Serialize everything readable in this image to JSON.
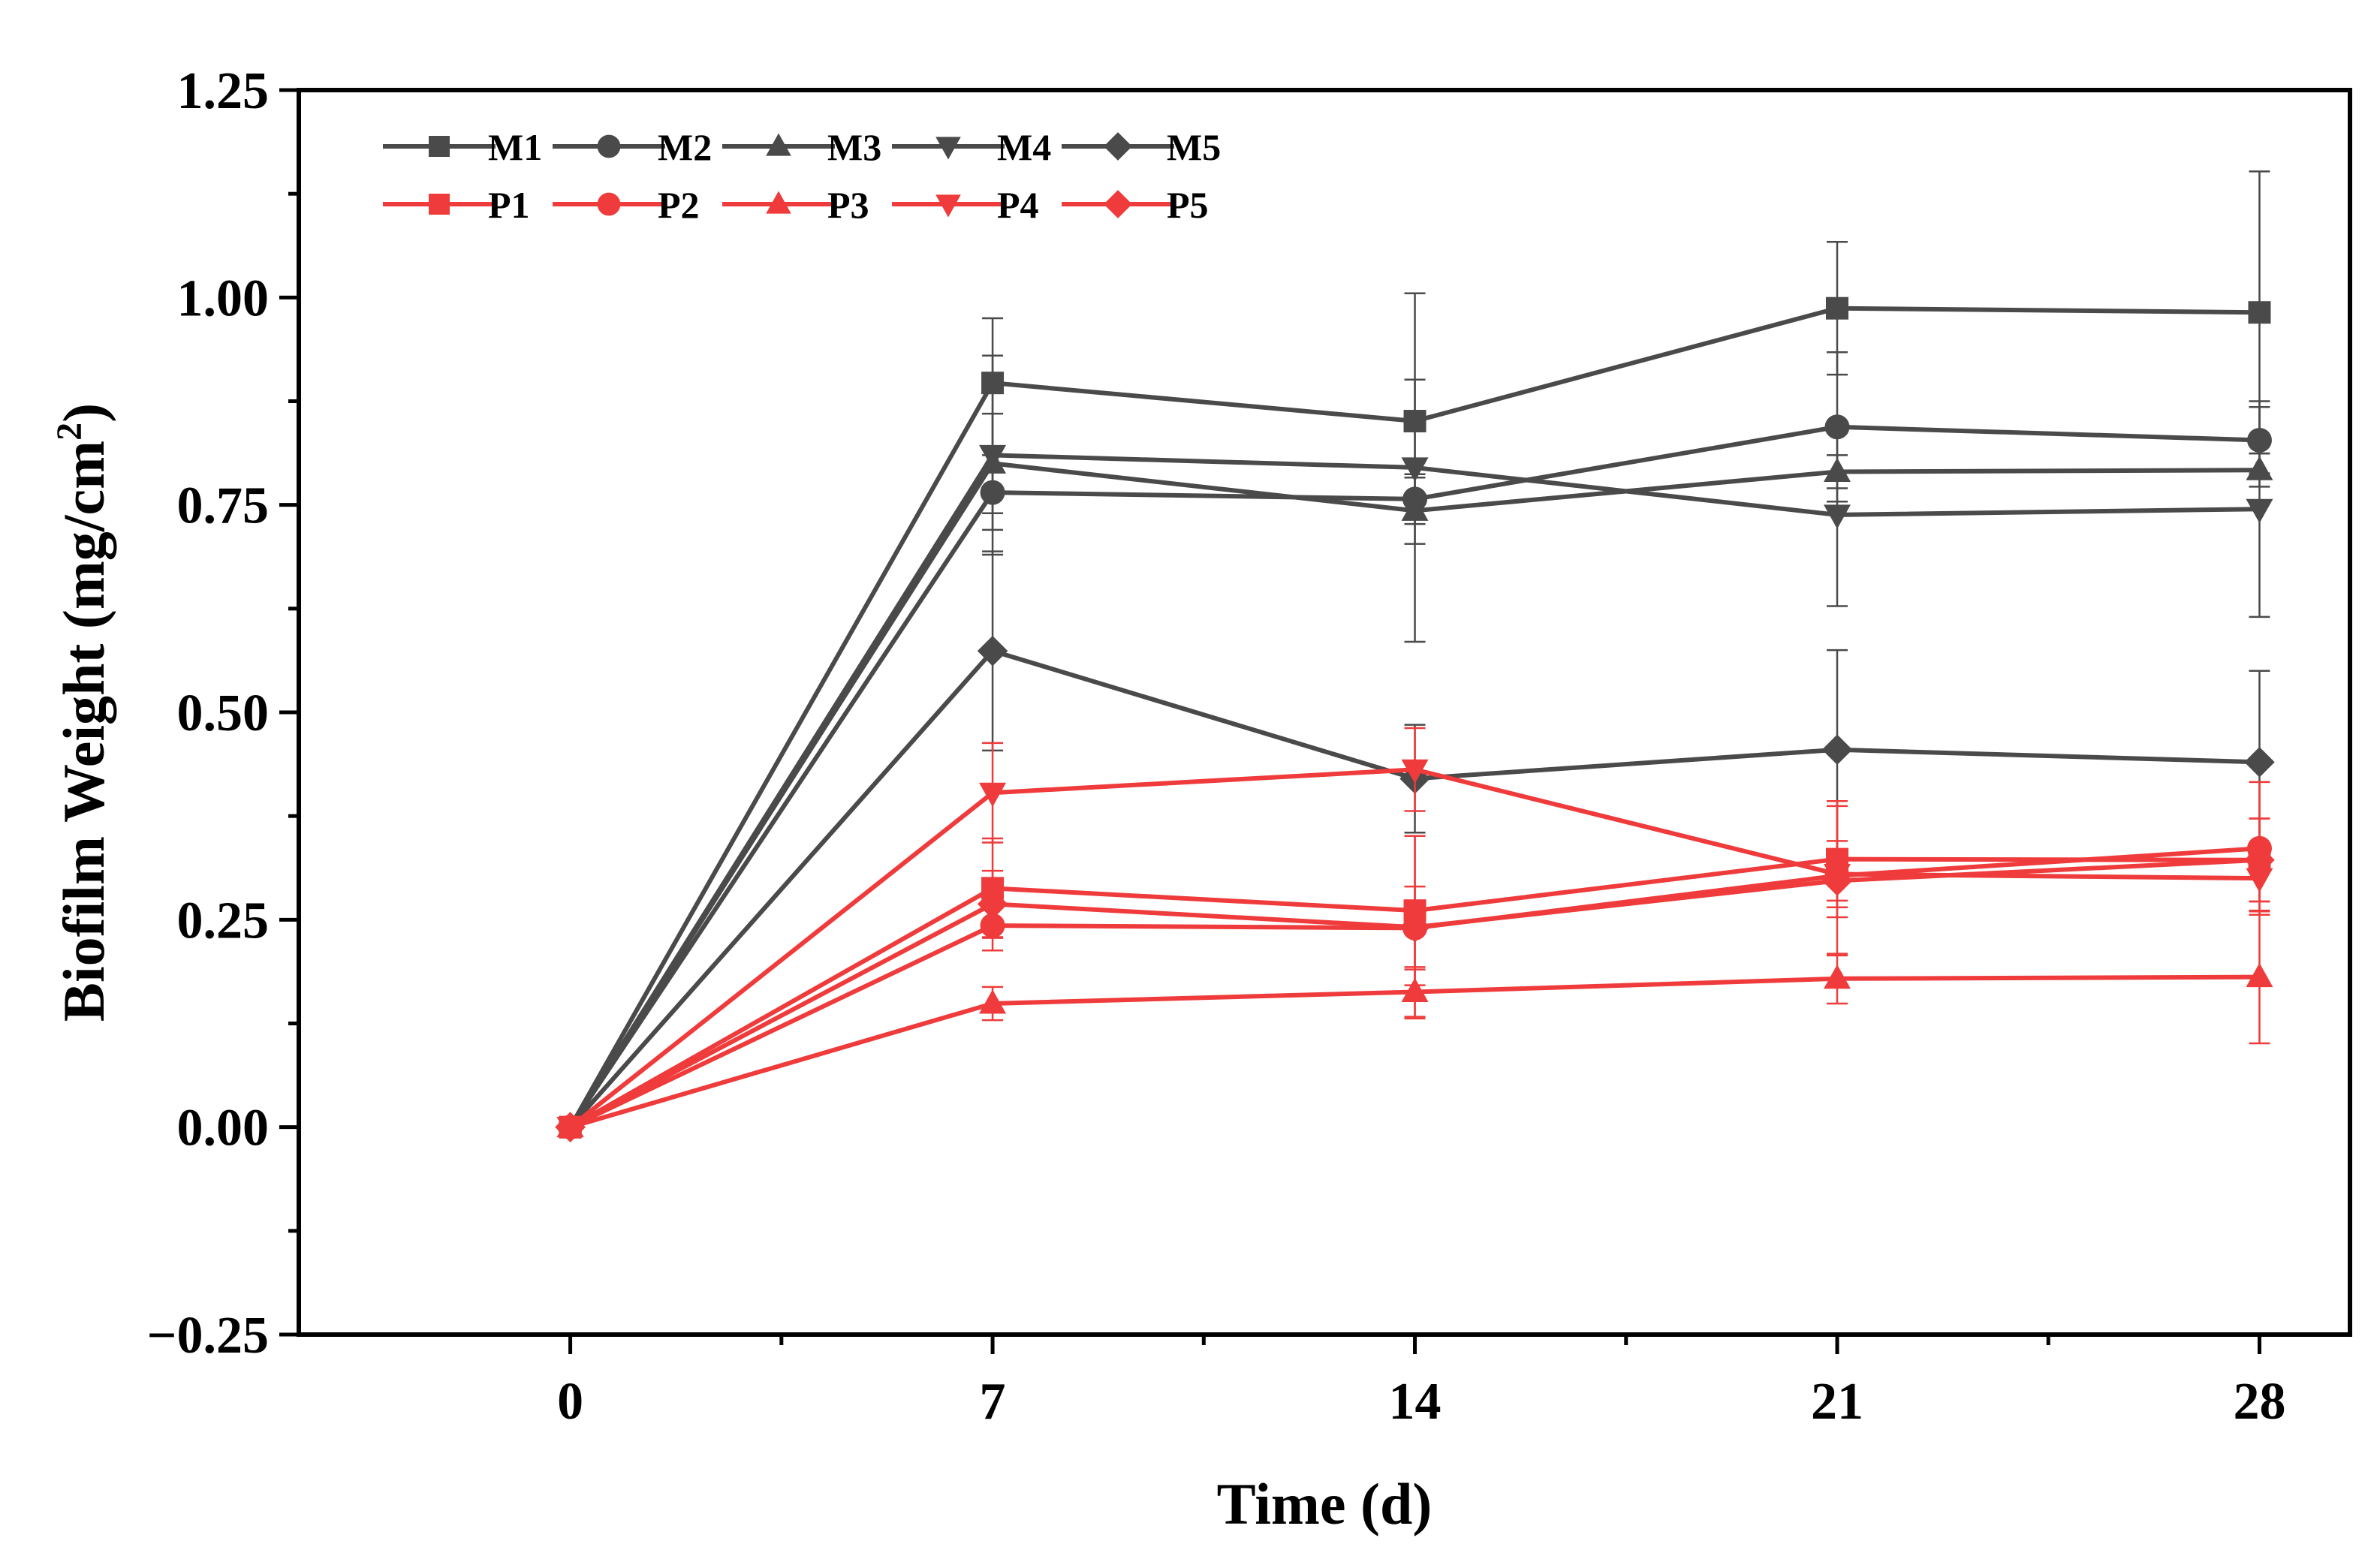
{
  "chart_data": {
    "type": "line",
    "title": "",
    "xlabel": "Time (d)",
    "ylabel_main": "Biofilm Weight (mg/cm",
    "ylabel_sup": "2",
    "ylabel_close": ")",
    "x": [
      0,
      7,
      14,
      21,
      28
    ],
    "xticks": [
      "0",
      "7",
      "14",
      "21",
      "28"
    ],
    "xlim": [
      -4.5,
      29.5
    ],
    "yticks": [
      "−0.25",
      "0.00",
      "0.25",
      "0.50",
      "0.75",
      "1.00",
      "1.25"
    ],
    "ytick_values": [
      -0.25,
      0,
      0.25,
      0.5,
      0.75,
      1.0,
      1.25
    ],
    "ylim": [
      -0.25,
      1.25
    ],
    "grid": false,
    "legend_position": "top-left",
    "series": [
      {
        "name": "M1",
        "color": "#4a4a4a",
        "marker": "square",
        "values": [
          0,
          0.897,
          0.851,
          0.987,
          0.982
        ],
        "errors": [
          0,
          0.078,
          0.05,
          0.08,
          0.17
        ]
      },
      {
        "name": "M2",
        "color": "#4a4a4a",
        "marker": "circle",
        "values": [
          0,
          0.765,
          0.757,
          0.844,
          0.828
        ],
        "errors": [
          0,
          0.045,
          0.03,
          0.09,
          0.04
        ]
      },
      {
        "name": "M3",
        "color": "#4a4a4a",
        "marker": "triangle-up",
        "values": [
          0,
          0.8,
          0.743,
          0.79,
          0.792
        ],
        "errors": [
          0,
          0.06,
          0.04,
          0.02,
          0.02
        ]
      },
      {
        "name": "M4",
        "color": "#4a4a4a",
        "marker": "triangle-down",
        "values": [
          0,
          0.81,
          0.795,
          0.738,
          0.745
        ],
        "errors": [
          0,
          0.12,
          0.21,
          0.11,
          0.13
        ]
      },
      {
        "name": "M5",
        "color": "#4a4a4a",
        "marker": "diamond",
        "values": [
          0,
          0.574,
          0.42,
          0.455,
          0.44
        ],
        "errors": [
          0,
          0.12,
          0.065,
          0.12,
          0.11
        ]
      },
      {
        "name": "P1",
        "color": "#ef3b3b",
        "marker": "square",
        "values": [
          0,
          0.288,
          0.261,
          0.323,
          0.322
        ],
        "errors": [
          0,
          0.06,
          0.09,
          0.07,
          0.05
        ]
      },
      {
        "name": "P2",
        "color": "#ef3b3b",
        "marker": "circle",
        "values": [
          0,
          0.243,
          0.24,
          0.303,
          0.336
        ],
        "errors": [
          0,
          0.03,
          0.05,
          0.03,
          0.08
        ]
      },
      {
        "name": "P3",
        "color": "#ef3b3b",
        "marker": "triangle-up",
        "values": [
          0,
          0.149,
          0.163,
          0.179,
          0.181
        ],
        "errors": [
          0,
          0.02,
          0.03,
          0.03,
          0.08
        ]
      },
      {
        "name": "P4",
        "color": "#ef3b3b",
        "marker": "triangle-down",
        "values": [
          0,
          0.403,
          0.431,
          0.305,
          0.3
        ],
        "errors": [
          0,
          0.06,
          0.05,
          0.04,
          0.04
        ]
      },
      {
        "name": "P5",
        "color": "#ef3b3b",
        "marker": "diamond",
        "values": [
          0,
          0.269,
          0.241,
          0.297,
          0.322
        ],
        "errors": [
          0,
          0.04,
          0.11,
          0.09,
          0.05
        ]
      }
    ]
  }
}
